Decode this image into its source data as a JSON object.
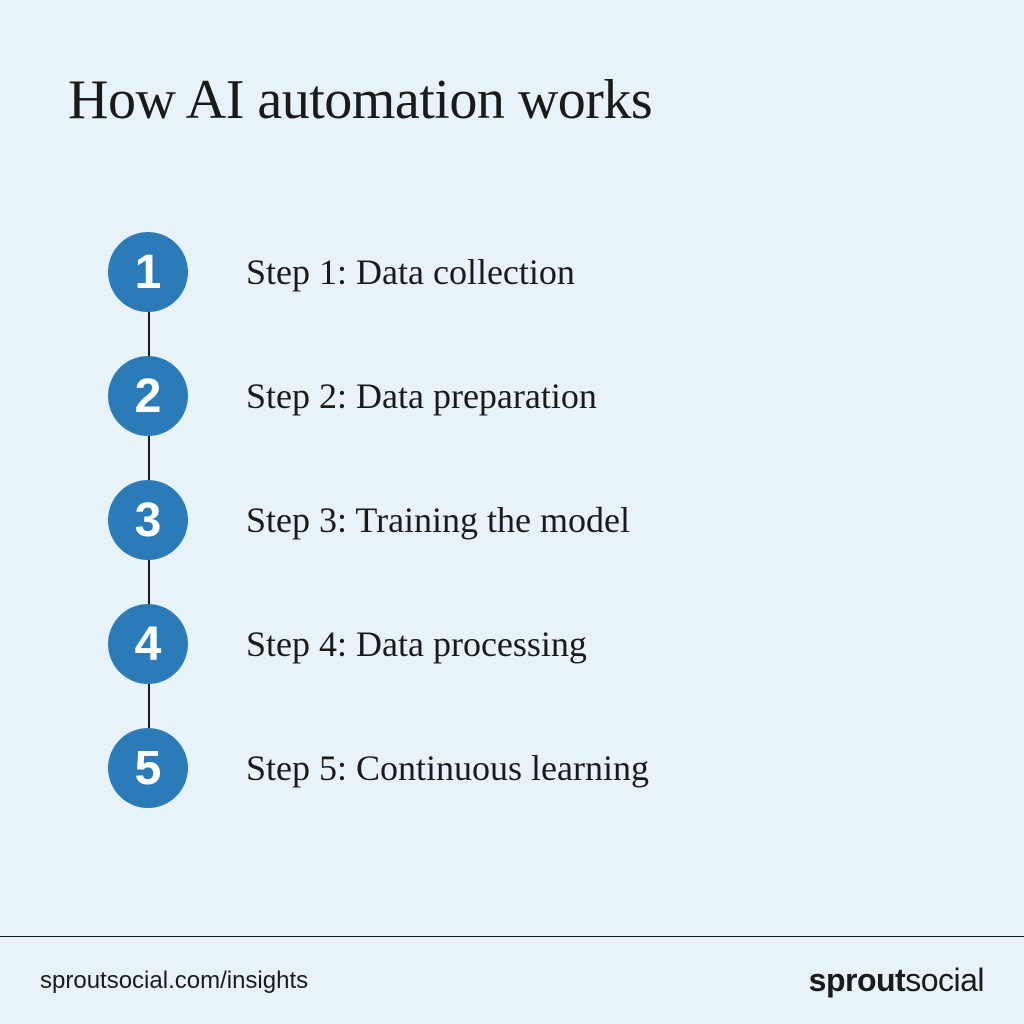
{
  "title": "How AI automation works",
  "steps": [
    {
      "num": "1",
      "label": "Step 1: Data collection"
    },
    {
      "num": "2",
      "label": "Step 2: Data preparation"
    },
    {
      "num": "3",
      "label": "Step 3: Training the model"
    },
    {
      "num": "4",
      "label": "Step 4: Data processing"
    },
    {
      "num": "5",
      "label": "Step 5: Continuous learning"
    }
  ],
  "footer": {
    "url": "sproutsocial.com/insights",
    "logo_bold": "sprout",
    "logo_light": "social"
  },
  "style": {
    "background_color": "#e7f3f9",
    "title_color": "#1a1a1a",
    "step_circle_color": "#2b7bb9",
    "step_number_color": "#ffffff",
    "step_label_color": "#1a1a1a",
    "connector_color": "#1a1a1a",
    "footer_bg": "#e7f3f9",
    "footer_border": "#1a1a1a",
    "footer_text_color": "#1a1a1a",
    "title_fontsize": 56,
    "step_label_fontsize": 36,
    "step_number_fontsize": 48,
    "circle_diameter": 80,
    "row_gap": 44,
    "connector_width": 2,
    "connector_height": 500
  }
}
